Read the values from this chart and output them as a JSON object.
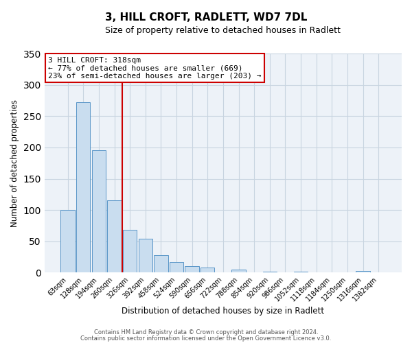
{
  "title": "3, HILL CROFT, RADLETT, WD7 7DL",
  "subtitle": "Size of property relative to detached houses in Radlett",
  "xlabel": "Distribution of detached houses by size in Radlett",
  "ylabel": "Number of detached properties",
  "bar_labels": [
    "63sqm",
    "128sqm",
    "194sqm",
    "260sqm",
    "326sqm",
    "392sqm",
    "458sqm",
    "524sqm",
    "590sqm",
    "656sqm",
    "722sqm",
    "788sqm",
    "854sqm",
    "920sqm",
    "986sqm",
    "1052sqm",
    "1118sqm",
    "1184sqm",
    "1250sqm",
    "1316sqm",
    "1382sqm"
  ],
  "bar_values": [
    100,
    272,
    195,
    115,
    68,
    54,
    28,
    17,
    10,
    8,
    0,
    5,
    0,
    2,
    0,
    2,
    0,
    0,
    0,
    3,
    0
  ],
  "bar_color": "#c9ddef",
  "bar_edge_color": "#5a96c8",
  "grid_color": "#c8d4e0",
  "background_color": "#edf2f8",
  "vline_color": "#cc0000",
  "vline_x_idx": 3.5,
  "annotation_title": "3 HILL CROFT: 318sqm",
  "annotation_line1": "← 77% of detached houses are smaller (669)",
  "annotation_line2": "23% of semi-detached houses are larger (203) →",
  "annotation_box_color": "#cc0000",
  "ylim": [
    0,
    350
  ],
  "yticks": [
    0,
    50,
    100,
    150,
    200,
    250,
    300,
    350
  ],
  "footer1": "Contains HM Land Registry data © Crown copyright and database right 2024.",
  "footer2": "Contains public sector information licensed under the Open Government Licence v3.0."
}
